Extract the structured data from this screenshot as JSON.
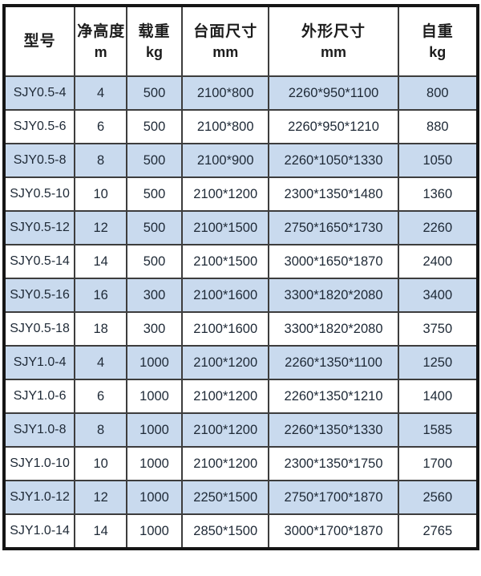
{
  "table": {
    "name": "lift-platform-spec-table",
    "columns": [
      {
        "label": "型号",
        "unit": ""
      },
      {
        "label": "净高度",
        "unit": "m"
      },
      {
        "label": "载重",
        "unit": "kg"
      },
      {
        "label": "台面尺寸",
        "unit": "mm"
      },
      {
        "label": "外形尺寸",
        "unit": "mm"
      },
      {
        "label": "自重",
        "unit": "kg"
      }
    ],
    "rows": [
      [
        "SJY0.5-4",
        "4",
        "500",
        "2100*800",
        "2260*950*1100",
        "800"
      ],
      [
        "SJY0.5-6",
        "6",
        "500",
        "2100*800",
        "2260*950*1210",
        "880"
      ],
      [
        "SJY0.5-8",
        "8",
        "500",
        "2100*900",
        "2260*1050*1330",
        "1050"
      ],
      [
        "SJY0.5-10",
        "10",
        "500",
        "2100*1200",
        "2300*1350*1480",
        "1360"
      ],
      [
        "SJY0.5-12",
        "12",
        "500",
        "2100*1500",
        "2750*1650*1730",
        "2260"
      ],
      [
        "SJY0.5-14",
        "14",
        "500",
        "2100*1500",
        "3000*1650*1870",
        "2400"
      ],
      [
        "SJY0.5-16",
        "16",
        "300",
        "2100*1600",
        "3300*1820*2080",
        "3400"
      ],
      [
        "SJY0.5-18",
        "18",
        "300",
        "2100*1600",
        "3300*1820*2080",
        "3750"
      ],
      [
        "SJY1.0-4",
        "4",
        "1000",
        "2100*1200",
        "2260*1350*1100",
        "1250"
      ],
      [
        "SJY1.0-6",
        "6",
        "1000",
        "2100*1200",
        "2260*1350*1210",
        "1400"
      ],
      [
        "SJY1.0-8",
        "8",
        "1000",
        "2100*1200",
        "2260*1350*1330",
        "1585"
      ],
      [
        "SJY1.0-10",
        "10",
        "1000",
        "2100*1200",
        "2300*1350*1750",
        "1700"
      ],
      [
        "SJY1.0-12",
        "12",
        "1000",
        "2250*1500",
        "2750*1700*1870",
        "2560"
      ],
      [
        "SJY1.0-14",
        "14",
        "1000",
        "2850*1500",
        "3000*1700*1870",
        "2765"
      ]
    ]
  },
  "colors": {
    "stripe_blue": "#c9daee",
    "grid_line": "#3d3d3d",
    "outer_border": "#151515",
    "cell_text": "#1e2936",
    "header_text": "#1c1c1c"
  }
}
